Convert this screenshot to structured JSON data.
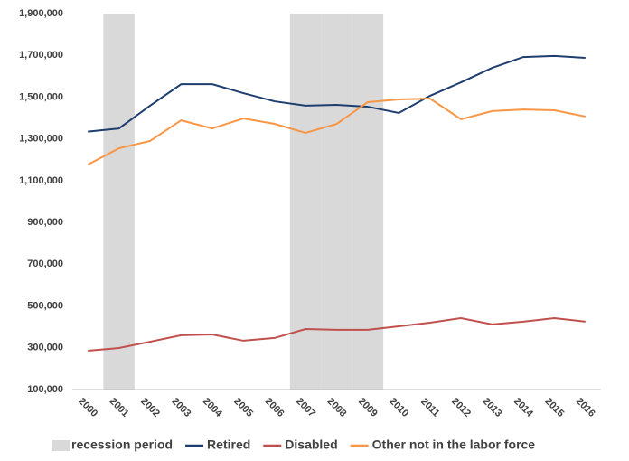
{
  "chart_data": {
    "type": "line",
    "categories": [
      "2000",
      "2001",
      "2002",
      "2003",
      "2004",
      "2005",
      "2006",
      "2007",
      "2008",
      "2009",
      "2010",
      "2011",
      "2012",
      "2013",
      "2014",
      "2015",
      "2016"
    ],
    "series": [
      {
        "name": "recession period",
        "type": "bar",
        "color": "#d9d9d9",
        "values": [
          null,
          1900000,
          null,
          null,
          null,
          null,
          null,
          1900000,
          1900000,
          1900000,
          null,
          null,
          null,
          null,
          null,
          null,
          null
        ]
      },
      {
        "name": "Retired",
        "color": "#1f3d6e",
        "values": [
          1335000,
          1350000,
          1459000,
          1562000,
          1562000,
          1519000,
          1480000,
          1459000,
          1463000,
          1454000,
          1424000,
          1506000,
          1571000,
          1640000,
          1692000,
          1697000,
          1688000
        ]
      },
      {
        "name": "Disabled",
        "color": "#c0504d",
        "values": [
          286000,
          299000,
          329000,
          360000,
          364000,
          334000,
          347000,
          390000,
          386000,
          386000,
          403000,
          420000,
          442000,
          412000,
          425000,
          442000,
          425000
        ]
      },
      {
        "name": "Other not in the labor force",
        "color": "#f79646",
        "values": [
          1177000,
          1255000,
          1290000,
          1389000,
          1350000,
          1398000,
          1372000,
          1329000,
          1372000,
          1476000,
          1489000,
          1493000,
          1394000,
          1433000,
          1441000,
          1437000,
          1407000
        ]
      }
    ],
    "ylim": [
      100000,
      1900000
    ],
    "yticks": [
      {
        "value": 100000,
        "label": "100,000"
      },
      {
        "value": 300000,
        "label": "300,000"
      },
      {
        "value": 500000,
        "label": "500,000"
      },
      {
        "value": 700000,
        "label": "700,000"
      },
      {
        "value": 900000,
        "label": "900,000"
      },
      {
        "value": 1100000,
        "label": "1,100,000"
      },
      {
        "value": 1300000,
        "label": "1,300,000"
      },
      {
        "value": 1500000,
        "label": "1,500,000"
      },
      {
        "value": 1700000,
        "label": "1,700,000"
      },
      {
        "value": 1900000,
        "label": "1,900,000"
      }
    ],
    "grid": false,
    "legend": "bottom"
  }
}
